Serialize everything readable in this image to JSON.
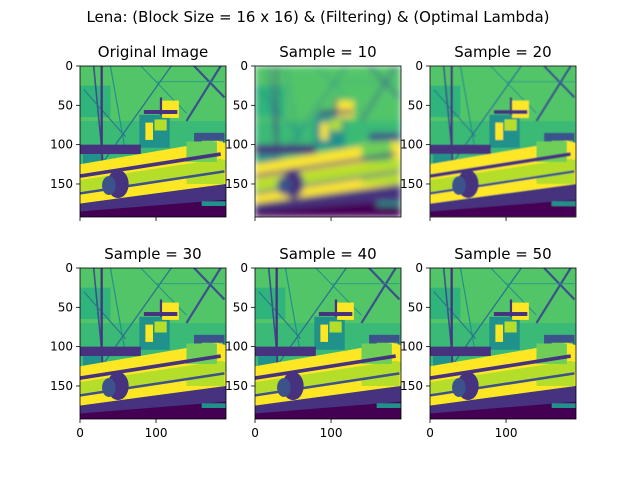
{
  "figure": {
    "suptitle": "Lena: (Block Size = 16 x 16) & (Filtering) & (Optimal Lambda)"
  },
  "chart_data": {
    "type": "image-grid",
    "title": "Lena: (Block Size = 16 x 16) & (Filtering) & (Optimal Lambda)",
    "colormap": "viridis",
    "rows": 2,
    "cols": 3,
    "x_ticks": [
      0,
      100
    ],
    "y_ticks": [
      0,
      50,
      100,
      150
    ],
    "image_extent": [
      0,
      192
    ],
    "x_tick_labels_visible_row": 2,
    "y_tick_labels_visible_all": true,
    "panels": [
      {
        "title": "Original Image",
        "sample": null,
        "blur": 0
      },
      {
        "title": "Sample = 10",
        "sample": 10,
        "blur": 3.2
      },
      {
        "title": "Sample = 20",
        "sample": 20,
        "blur": 0.4
      },
      {
        "title": "Sample = 30",
        "sample": 30,
        "blur": 0
      },
      {
        "title": "Sample = 40",
        "sample": 40,
        "blur": 0
      },
      {
        "title": "Sample = 50",
        "sample": 50,
        "blur": 0
      }
    ]
  }
}
